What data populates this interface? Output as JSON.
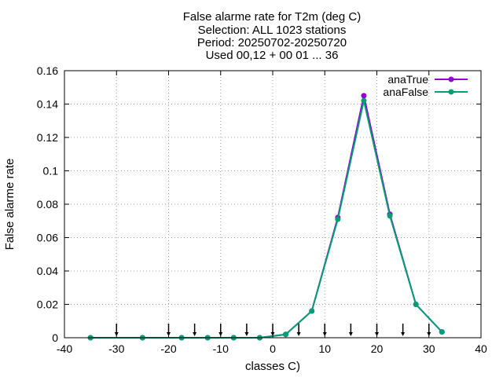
{
  "chart_data": {
    "type": "line",
    "title_lines": [
      "False alarme rate  for T2m (deg C)",
      "Selection: ALL   1023 stations",
      "Period: 20250702-20250720",
      "Used 00,12 + 00 01 ... 36"
    ],
    "xlabel": "classes C)",
    "ylabel": "False alarme rate",
    "xlim": [
      -40,
      40
    ],
    "ylim": [
      0,
      0.16
    ],
    "x_ticks": [
      -40,
      -30,
      -20,
      -10,
      0,
      10,
      20,
      30,
      40
    ],
    "y_ticks": [
      0,
      0.02,
      0.04,
      0.06,
      0.08,
      0.1,
      0.12,
      0.14,
      0.16
    ],
    "x_tick_labels": [
      "-40",
      "-30",
      "-20",
      "-10",
      "0",
      "10",
      "20",
      "30",
      "40"
    ],
    "y_tick_labels": [
      "0",
      "0.02",
      "0.04",
      "0.06",
      "0.08",
      "0.1",
      "0.12",
      "0.14",
      "0.16"
    ],
    "grid": true,
    "legend_position": "top-right",
    "series": [
      {
        "name": "anaTrue",
        "color": "#9400d3",
        "marker": "circle",
        "x": [
          -35,
          -25,
          -17.5,
          -12.5,
          -7.5,
          -2.5,
          2.5,
          7.5,
          12.5,
          17.5,
          22.5,
          27.5,
          32.5
        ],
        "y": [
          0,
          0,
          0,
          0,
          0,
          0,
          0.002,
          0.016,
          0.072,
          0.145,
          0.074,
          0.02,
          0.0035
        ]
      },
      {
        "name": "anaFalse",
        "color": "#009e73",
        "marker": "circle",
        "x": [
          -35,
          -25,
          -17.5,
          -12.5,
          -7.5,
          -2.5,
          2.5,
          7.5,
          12.5,
          17.5,
          22.5,
          27.5,
          32.5
        ],
        "y": [
          0,
          0,
          0,
          0,
          0,
          0,
          0.002,
          0.016,
          0.071,
          0.142,
          0.073,
          0.02,
          0.0035
        ]
      }
    ],
    "class_boundary_arrows": {
      "color": "#000000",
      "x": [
        -30,
        -20,
        -15,
        -10,
        -5,
        0,
        5,
        10,
        15,
        20,
        25,
        30
      ]
    }
  }
}
